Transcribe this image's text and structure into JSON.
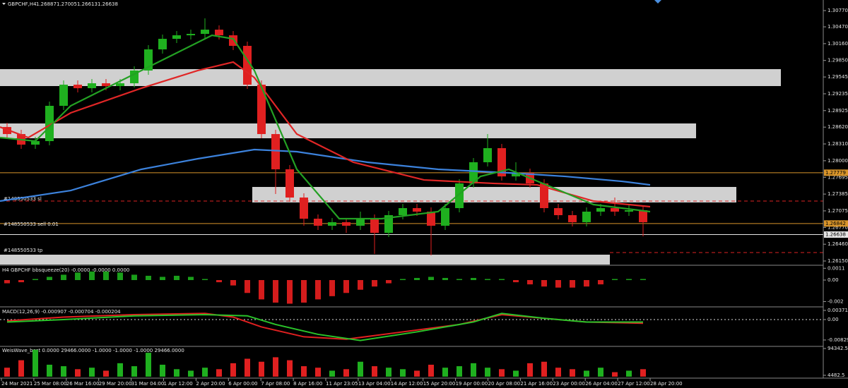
{
  "chart_data": [
    {
      "type": "candlestick",
      "symbol": "GBPCHF,H4",
      "quote": [
        1.26887,
        1.27005,
        1.26613,
        1.26638
      ],
      "open": [
        1.28622,
        1.28492,
        1.28297,
        1.28362,
        1.29013,
        1.29403,
        1.29338,
        1.29429,
        1.29377,
        1.29429,
        1.29664,
        1.30054,
        1.30249,
        1.30314,
        1.3034,
        1.30418,
        1.30314,
        1.30119,
        1.29403,
        1.28492,
        1.27842,
        1.27321,
        1.26931,
        1.26801,
        1.26866,
        1.26801,
        1.26931,
        1.2667,
        1.26996,
        1.27126,
        1.27061,
        1.26801,
        1.27126,
        1.27581,
        1.27972,
        1.28232,
        1.27711,
        1.27777,
        1.27581,
        1.27126,
        1.26996,
        1.26866,
        1.27061,
        1.27126,
        1.27061,
        1.27087
      ],
      "high": [
        1.28701,
        1.2857,
        1.2844,
        1.29091,
        1.29481,
        1.29481,
        1.29507,
        1.29507,
        1.29507,
        1.29742,
        1.30132,
        1.30327,
        1.30392,
        1.30418,
        1.30627,
        1.30496,
        1.30392,
        1.30197,
        1.29481,
        1.2857,
        1.2792,
        1.27399,
        1.27009,
        1.26944,
        1.26944,
        1.27061,
        1.27009,
        1.27074,
        1.27204,
        1.27204,
        1.27139,
        1.27204,
        1.27659,
        1.2805,
        1.28492,
        1.2831,
        1.27972,
        1.27855,
        1.27659,
        1.27204,
        1.27074,
        1.27139,
        1.27204,
        1.27321,
        1.27191,
        1.27165
      ],
      "low": [
        1.28414,
        1.28219,
        1.28219,
        1.28284,
        1.28935,
        1.2926,
        1.2926,
        1.29299,
        1.29299,
        1.29351,
        1.29586,
        1.29976,
        1.30171,
        1.30236,
        1.30262,
        1.30236,
        1.30041,
        1.29325,
        1.28414,
        1.27386,
        1.27243,
        1.26801,
        1.26722,
        1.26722,
        1.2667,
        1.26722,
        1.2628,
        1.26592,
        1.26918,
        1.26983,
        1.26254,
        1.26722,
        1.27048,
        1.27503,
        1.27894,
        1.27633,
        1.27633,
        1.27503,
        1.27048,
        1.26918,
        1.26788,
        1.26788,
        1.26983,
        1.26983,
        1.26983,
        1.26605
      ],
      "close": [
        1.28492,
        1.28297,
        1.28362,
        1.29013,
        1.29403,
        1.29338,
        1.29429,
        1.29377,
        1.29429,
        1.29664,
        1.30054,
        1.30249,
        1.30314,
        1.3034,
        1.30418,
        1.30314,
        1.30119,
        1.29403,
        1.28492,
        1.27842,
        1.27321,
        1.26931,
        1.26801,
        1.26866,
        1.26801,
        1.26931,
        1.2667,
        1.26996,
        1.27126,
        1.27061,
        1.26801,
        1.27126,
        1.27581,
        1.27972,
        1.28232,
        1.27711,
        1.27777,
        1.27581,
        1.27126,
        1.26996,
        1.26866,
        1.27061,
        1.27126,
        1.27061,
        1.27087,
        1.26866
      ],
      "up_color": "#1fb01f",
      "down_color": "#e02020",
      "lines": [
        {
          "color": "#3c82dc",
          "x": [
            -0.5,
            4.5,
            9.5,
            13.5,
            17.5,
            20.5,
            25.5,
            30.5,
            35.5,
            39.5,
            43.5,
            45.5
          ],
          "values": [
            1.27256,
            1.27451,
            1.27842,
            1.28037,
            1.28206,
            1.28167,
            1.27972,
            1.27842,
            1.27777,
            1.27711,
            1.2762,
            1.27555
          ]
        },
        {
          "color": "#e02626",
          "x": [
            -0.5,
            1.5,
            4.5,
            9.5,
            13.5,
            16,
            17.5,
            20.5,
            24.5,
            29.5,
            34.5,
            37.5,
            41.5,
            45.5
          ],
          "values": [
            1.28622,
            1.28427,
            1.28883,
            1.29338,
            1.29664,
            1.2982,
            1.29533,
            1.28492,
            1.27972,
            1.27646,
            1.27581,
            1.27555,
            1.27256,
            1.27152
          ]
        },
        {
          "color": "#23a023",
          "x": [
            -0.5,
            2,
            4.5,
            9.5,
            14.5,
            16,
            17.5,
            20.5,
            23.5,
            26.5,
            30.5,
            33.5,
            35.5,
            38.5,
            41.5,
            45.5
          ],
          "values": [
            1.28427,
            1.28362,
            1.29013,
            1.29664,
            1.30314,
            1.30249,
            1.29664,
            1.27842,
            1.26931,
            1.26931,
            1.27061,
            1.27711,
            1.27842,
            1.27516,
            1.27191,
            1.27061
          ]
        }
      ],
      "price_lines": [
        {
          "value": 1.27779,
          "color": "#d8942a"
        },
        {
          "value": 1.26842,
          "color": "#d8942a"
        },
        {
          "value": 1.26638,
          "color": "#e6e6e6"
        }
      ],
      "orders": [
        "#148550533 sl",
        "#148550533 sell 0.01",
        "#148550533 tp"
      ],
      "xlim": [
        -0.5,
        57.75
      ],
      "ylim": [
        1.26085,
        1.30965
      ],
      "yticks": [
        {
          "value": 1.3077,
          "label": "1.30770"
        },
        {
          "value": 1.3047,
          "label": "1.30470"
        },
        {
          "value": 1.3016,
          "label": "1.30160"
        },
        {
          "value": 1.2985,
          "label": "1.29850"
        },
        1.29545,
        1.29235,
        1.28925,
        {
          "value": 1.2862,
          "label": "1.28620"
        },
        {
          "value": 1.2831,
          "label": "1.28310"
        },
        {
          "value": 1.28,
          "label": "1.28000"
        },
        1.27695,
        1.27385,
        1.27075,
        {
          "value": 1.2677,
          "label": "1.26770"
        },
        {
          "value": 1.2646,
          "label": "1.26460"
        },
        {
          "value": 1.2615,
          "label": "1.26150"
        }
      ],
      "time_labels": [
        "24 Mar 2021",
        "25 Mar 08:00",
        "26 Mar 16:00",
        "29 Mar 20:00",
        "31 Mar 04:00",
        "1 Apr 12:00",
        "2 Apr 20:00",
        "6 Apr 00:00",
        "7 Apr 08:00",
        "8 Apr 16:00",
        "11 Apr 23:05",
        "13 Apr 04:00",
        "14 Apr 12:00",
        "15 Apr 20:00",
        "19 Apr 00:00",
        "20 Apr 08:00",
        "21 Apr 16:00",
        "23 Apr 00:00",
        "26 Apr 04:00",
        "27 Apr 12:00",
        "28 Apr 20:00"
      ]
    },
    {
      "type": "bar",
      "title": "H4 GBPCHF bbsqueeze(20) -0.0000 -0.0000 0.0000",
      "values": [
        -0.0003,
        -0.0002,
        0.0001,
        0.0003,
        0.0005,
        0.0007,
        0.0008,
        0.0008,
        0.0007,
        0.0005,
        0.0004,
        0.0003,
        0.0004,
        0.0003,
        0.0001,
        -0.0002,
        -0.0005,
        -0.0012,
        -0.0018,
        -0.0021,
        -0.0022,
        -0.0021,
        -0.0018,
        -0.0015,
        -0.0012,
        -0.0009,
        -0.0006,
        -0.0003,
        0.0001,
        0.0002,
        0.0003,
        0.0002,
        0.0001,
        0.0002,
        0.0001,
        0.0001,
        -0.0002,
        -0.0004,
        -0.0006,
        -0.0007,
        -0.0007,
        -0.0006,
        -0.0004,
        0.0001,
        0.0001,
        0.0001
      ],
      "pos_color": "#1a9e1a",
      "neg_color": "#d41c1c",
      "xlim": [
        -0.5,
        57.75
      ],
      "ylim": [
        -0.0023,
        0.00125
      ],
      "yticks": [
        0.0011,
        {
          "value": 0,
          "label": "0.00"
        },
        -0.002
      ]
    },
    {
      "type": "line",
      "title": "MACD(12,26,9) -0.000907 -0.000704 -0.000204",
      "series": [
        {
          "color": "#e02020",
          "x": [
            0,
            4,
            9,
            14,
            16,
            18,
            21,
            24,
            28,
            32,
            35,
            38,
            41,
            45
          ],
          "values": [
            -0.0005,
            0.001,
            0.002,
            0.0025,
            0.001,
            -0.003,
            -0.007,
            -0.008,
            -0.005,
            -0.002,
            0.002,
            0.0005,
            -0.001,
            -0.0015
          ]
        },
        {
          "color": "#2ac42a",
          "x": [
            0,
            4,
            9,
            14,
            17,
            19,
            22,
            25,
            29,
            33,
            35,
            38,
            41,
            45
          ],
          "values": [
            -0.001,
            0,
            0.0015,
            0.002,
            0.0015,
            -0.002,
            -0.006,
            -0.0085,
            -0.005,
            -0.001,
            0.0025,
            0.0005,
            -0.001,
            -0.001
          ]
        }
      ],
      "xlim": [
        -0.5,
        57.75
      ],
      "ylim": [
        -0.0106,
        0.00457
      ],
      "yticks": [
        0.003715,
        {
          "value": 0,
          "label": "0.00"
        },
        -0.008299
      ]
    },
    {
      "type": "bar",
      "title": "WeisWave_best 0.0000 29466.0000 -1.0000 -1.0000 -1.0000 29466.0000",
      "values": [
        30000,
        55000,
        90000,
        40000,
        35000,
        25000,
        30000,
        20000,
        45000,
        35000,
        80000,
        40000,
        25000,
        20000,
        30000,
        25000,
        45000,
        60000,
        50000,
        65000,
        55000,
        35000,
        30000,
        20000,
        25000,
        50000,
        35000,
        30000,
        25000,
        20000,
        40000,
        30000,
        35000,
        45000,
        30000,
        25000,
        20000,
        45000,
        50000,
        30000,
        25000,
        20000,
        30000,
        15000,
        20000,
        25000
      ],
      "colors": [
        "#e02020",
        "#e02020",
        "#1fb01f",
        "#1fb01f",
        "#1fb01f",
        "#e02020",
        "#1fb01f",
        "#e02020",
        "#1fb01f",
        "#1fb01f",
        "#1fb01f",
        "#1fb01f",
        "#1fb01f",
        "#1fb01f",
        "#1fb01f",
        "#e02020",
        "#e02020",
        "#e02020",
        "#e02020",
        "#e02020",
        "#e02020",
        "#e02020",
        "#e02020",
        "#1fb01f",
        "#e02020",
        "#1fb01f",
        "#e02020",
        "#1fb01f",
        "#1fb01f",
        "#e02020",
        "#e02020",
        "#1fb01f",
        "#1fb01f",
        "#1fb01f",
        "#1fb01f",
        "#e02020",
        "#1fb01f",
        "#e02020",
        "#e02020",
        "#e02020",
        "#e02020",
        "#1fb01f",
        "#1fb01f",
        "#e02020",
        "#1fb01f",
        "#e02020"
      ],
      "xlim": [
        -0.5,
        57.75
      ],
      "ylim": [
        -2611.6,
        99071.9
      ],
      "yticks": [
        94342.5,
        4482.5
      ]
    }
  ]
}
